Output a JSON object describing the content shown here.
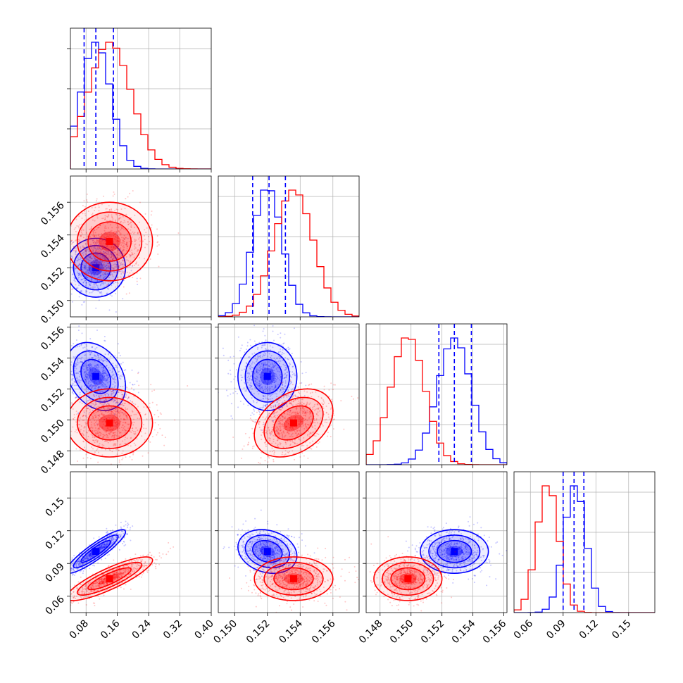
{
  "chart_data": {
    "type": "corner",
    "grid": true,
    "legend": "none",
    "colors": {
      "series_a": "#0000ff",
      "series_b": "#ff0000",
      "quantile_lines": "#0000ff"
    },
    "series": [
      {
        "color": "#0000ff",
        "mean": [
          0.105,
          0.152,
          0.1528,
          0.101
        ],
        "sd": [
          0.038,
          0.0009,
          0.0011,
          0.01
        ],
        "corr": [
          0,
          -0.3,
          0.9,
          0,
          -0.2,
          0
        ]
      },
      {
        "color": "#ff0000",
        "mean": [
          0.14,
          0.1536,
          0.1498,
          0.076
        ],
        "sd": [
          0.055,
          0.0012,
          0.0011,
          0.01
        ],
        "corr": [
          0,
          0,
          0.85,
          0.35,
          0,
          0
        ]
      }
    ],
    "quantiles_16_50_84": [
      [
        0.075,
        0.105,
        0.15
      ],
      [
        0.1511,
        0.1521,
        0.1531
      ],
      [
        0.1518,
        0.1528,
        0.1539
      ],
      [
        0.09,
        0.1,
        0.109
      ]
    ],
    "ranges": [
      [
        0.04,
        0.4
      ],
      [
        0.149,
        0.1576
      ],
      [
        0.1471,
        0.1562
      ],
      [
        0.045,
        0.174
      ]
    ],
    "ticks": [
      [
        0.08,
        0.16,
        0.24,
        0.32,
        0.4
      ],
      [
        0.15,
        0.152,
        0.154,
        0.156
      ],
      [
        0.148,
        0.15,
        0.152,
        0.154,
        0.156
      ],
      [
        0.06,
        0.09,
        0.12,
        0.15
      ]
    ],
    "tick_labels": [
      [
        "0.08",
        "0.16",
        "0.24",
        "0.32",
        "0.40"
      ],
      [
        "0.150",
        "0.152",
        "0.154",
        "0.156"
      ],
      [
        "0.148",
        "0.150",
        "0.152",
        "0.154",
        "0.156"
      ],
      [
        "0.06",
        "0.09",
        "0.12",
        "0.15"
      ]
    ]
  }
}
